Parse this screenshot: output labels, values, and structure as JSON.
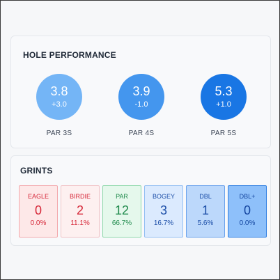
{
  "hole_performance": {
    "title": "HOLE PERFORMANCE",
    "items": [
      {
        "avg": "3.8",
        "diff": "+3.0",
        "label": "PAR 3S",
        "color": "#74b5f6"
      },
      {
        "avg": "3.9",
        "diff": "-1.0",
        "label": "PAR 4S",
        "color": "#4496ee"
      },
      {
        "avg": "5.3",
        "diff": "+1.0",
        "label": "PAR 5S",
        "color": "#1976e4"
      }
    ]
  },
  "grints": {
    "title": "GRINTS",
    "tiles": [
      {
        "label": "EAGLE",
        "count": "0",
        "pct": "0.0%",
        "bg": "#fde8e8",
        "border": "#f3a9ad",
        "color": "#d62839"
      },
      {
        "label": "BIRDIE",
        "count": "2",
        "pct": "11.1%",
        "bg": "#fdf0f0",
        "border": "#f1c3c6",
        "color": "#d62839"
      },
      {
        "label": "PAR",
        "count": "12",
        "pct": "66.7%",
        "bg": "#e5f8ec",
        "border": "#8fd8ab",
        "color": "#1f8a4c"
      },
      {
        "label": "BOGEY",
        "count": "3",
        "pct": "16.7%",
        "bg": "#dbeafe",
        "border": "#93bff3",
        "color": "#1d4fa8"
      },
      {
        "label": "DBL",
        "count": "1",
        "pct": "5.6%",
        "bg": "#bcd8fb",
        "border": "#6aa2ec",
        "color": "#1d4fa8"
      },
      {
        "label": "DBL+",
        "count": "0",
        "pct": "0.0%",
        "bg": "#8ec0fa",
        "border": "#2f7fe2",
        "color": "#1546a0"
      }
    ]
  }
}
